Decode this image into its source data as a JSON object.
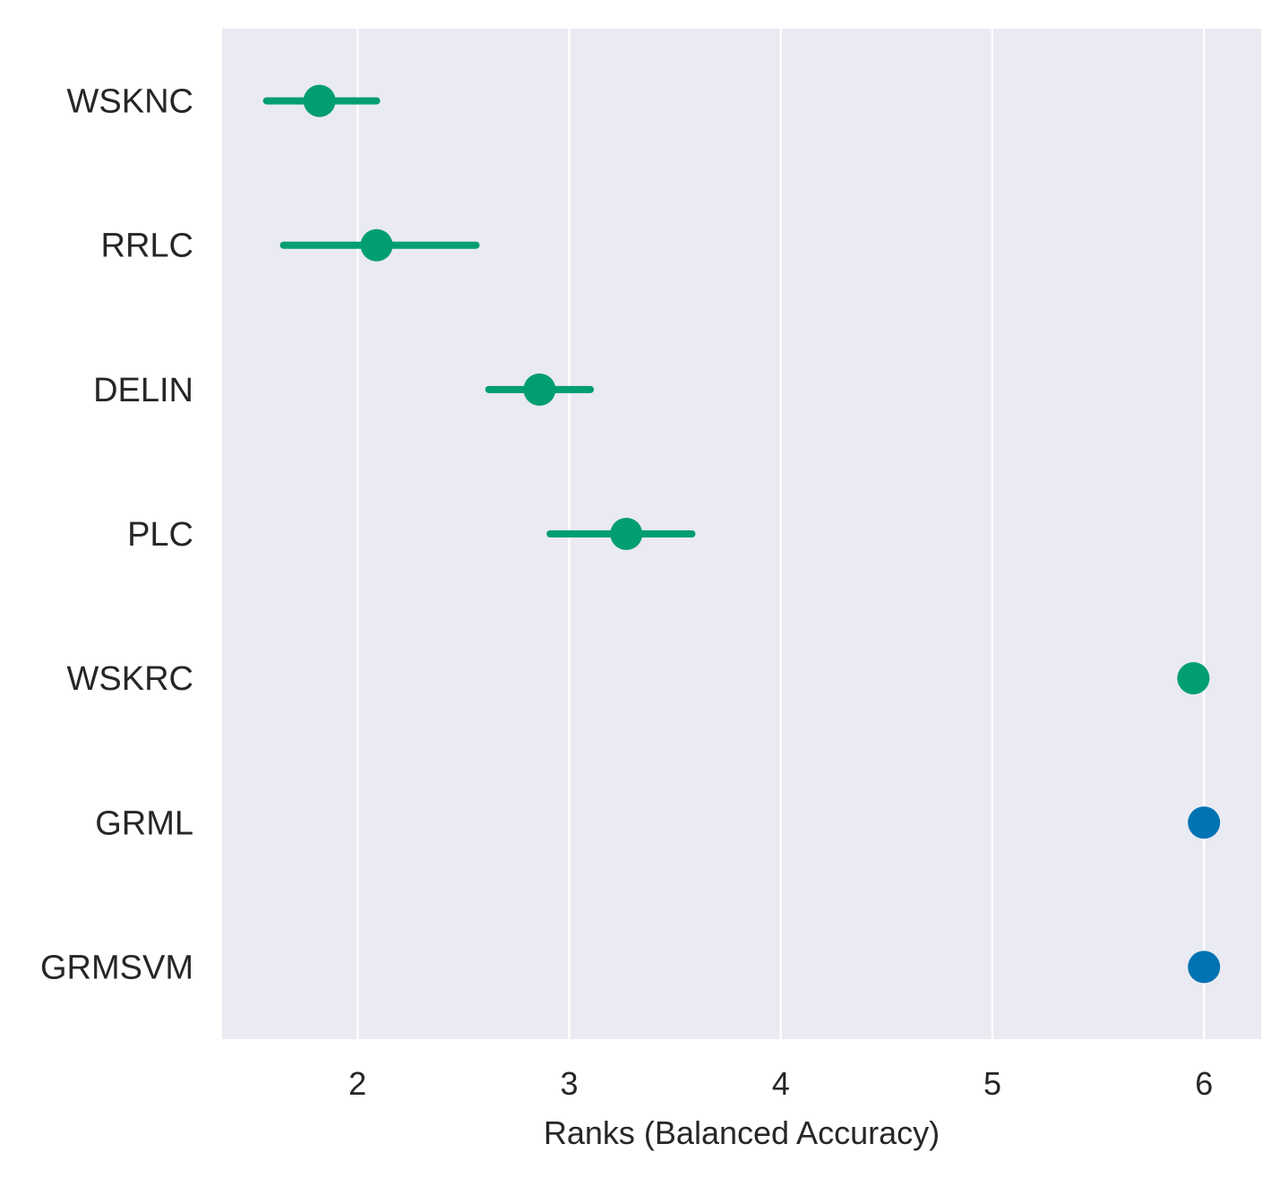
{
  "chart_data": {
    "type": "scatter",
    "subtype": "point-with-error-bars",
    "xlabel": "Ranks (Balanced Accuracy)",
    "ylabel": "",
    "xlim": [
      1.36,
      6.27
    ],
    "xticks": [
      2,
      3,
      4,
      5,
      6
    ],
    "grid": true,
    "background_color": "#eaeaf2",
    "grid_color": "#ffffff",
    "categories": [
      "WSKNC",
      "RRLC",
      "DELIN",
      "PLC",
      "WSKRC",
      "GRML",
      "GRMSVM"
    ],
    "points": [
      {
        "label": "WSKNC",
        "value": 1.82,
        "low": 1.57,
        "high": 2.09,
        "color": "#029e73"
      },
      {
        "label": "RRLC",
        "value": 2.09,
        "low": 1.65,
        "high": 2.56,
        "color": "#029e73"
      },
      {
        "label": "DELIN",
        "value": 2.86,
        "low": 2.62,
        "high": 3.1,
        "color": "#029e73"
      },
      {
        "label": "PLC",
        "value": 3.27,
        "low": 2.91,
        "high": 3.58,
        "color": "#029e73"
      },
      {
        "label": "WSKRC",
        "value": 5.95,
        "low": 5.89,
        "high": 6.0,
        "color": "#029e73"
      },
      {
        "label": "GRML",
        "value": 6.0,
        "low": 6.0,
        "high": 6.0,
        "color": "#0173b2"
      },
      {
        "label": "GRMSVM",
        "value": 6.0,
        "low": 6.0,
        "high": 6.0,
        "color": "#0173b2"
      }
    ]
  }
}
